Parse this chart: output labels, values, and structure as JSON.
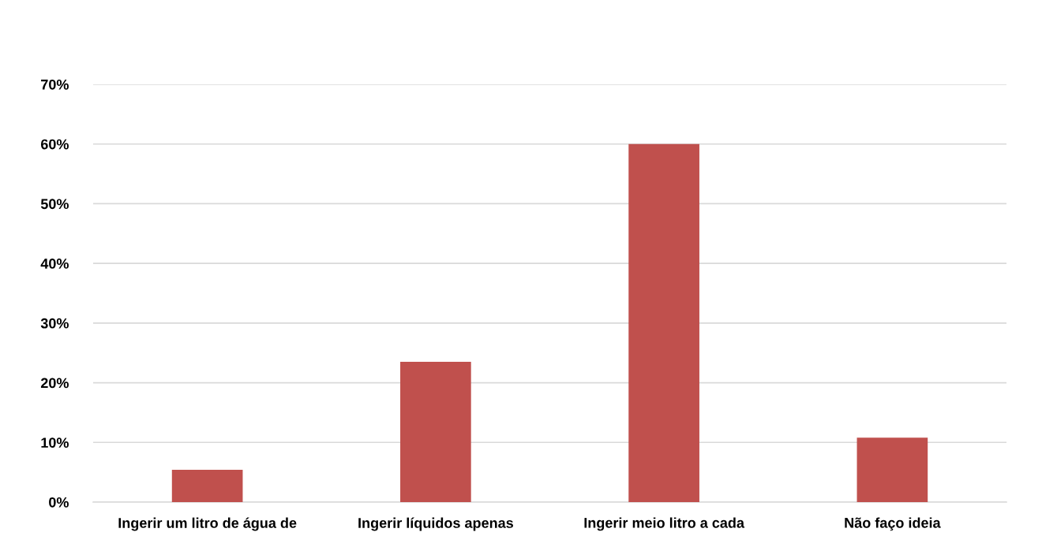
{
  "chart_data": {
    "type": "bar",
    "categories": [
      "Ingerir um litro de água de",
      "Ingerir líquidos apenas",
      "Ingerir meio litro a cada",
      "Não faço ideia"
    ],
    "values": [
      5.4,
      23.5,
      60,
      10.8
    ],
    "color": "#c0504d",
    "ylim": [
      0,
      70
    ],
    "yticks": [
      {
        "value": 0,
        "label": "0%"
      },
      {
        "value": 10,
        "label": "10%"
      },
      {
        "value": 20,
        "label": "20%"
      },
      {
        "value": 30,
        "label": "30%"
      },
      {
        "value": 40,
        "label": "40%"
      },
      {
        "value": 50,
        "label": "50%"
      },
      {
        "value": 60,
        "label": "60%"
      },
      {
        "value": 70,
        "label": "70%"
      }
    ],
    "grid": "y"
  }
}
